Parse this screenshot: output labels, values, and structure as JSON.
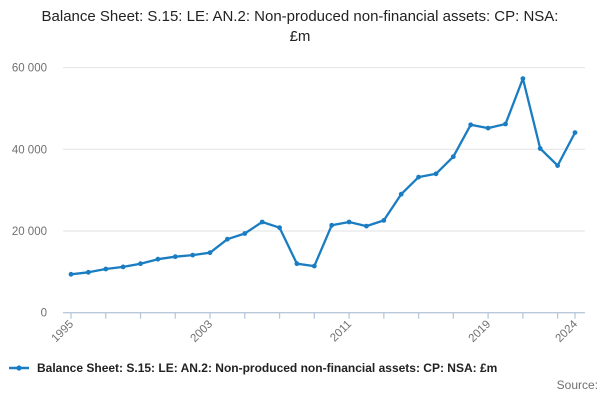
{
  "title": "Balance Sheet: S.15: LE: AN.2: Non-produced non-financial assets: CP: NSA: £m",
  "legend": {
    "label": "Balance Sheet: S.15: LE: AN.2: Non-produced non-financial assets: CP: NSA: £m",
    "marker": "line-with-dot-icon"
  },
  "source_label": "Source:",
  "colors": {
    "line": "#1a7dc2",
    "marker": "#1a7dc2",
    "grid": "#e2e2e2",
    "axis": "#b9c9da",
    "tick_text": "#707070",
    "title_text": "#222222"
  },
  "chart_data": {
    "type": "line",
    "title": "Balance Sheet: S.15: LE: AN.2: Non-produced non-financial assets: CP: NSA: £m",
    "xlabel": "",
    "ylabel": "",
    "x": [
      1995,
      1996,
      1997,
      1998,
      1999,
      2000,
      2001,
      2002,
      2003,
      2004,
      2005,
      2006,
      2007,
      2008,
      2009,
      2010,
      2011,
      2012,
      2013,
      2014,
      2015,
      2016,
      2017,
      2018,
      2019,
      2020,
      2021,
      2022,
      2023,
      2024
    ],
    "values": [
      9400,
      9900,
      10700,
      11200,
      12000,
      13100,
      13700,
      14100,
      14700,
      18000,
      19400,
      22200,
      20800,
      12000,
      11400,
      21400,
      22200,
      21200,
      22600,
      29000,
      33200,
      34000,
      38200,
      46000,
      45200,
      46200,
      57300,
      40200,
      36000,
      44100
    ],
    "ylim": [
      0,
      60000
    ],
    "xlim": [
      1995,
      2024
    ],
    "y_ticks": [
      {
        "value": 0,
        "label": "0"
      },
      {
        "value": 20000,
        "label": "20 000"
      },
      {
        "value": 40000,
        "label": "40 000"
      },
      {
        "value": 60000,
        "label": "60 000"
      }
    ],
    "x_minor_tick_years": [
      1995,
      1997,
      1999,
      2001,
      2003,
      2005,
      2007,
      2009,
      2011,
      2013,
      2015,
      2017,
      2019,
      2021,
      2023,
      2024
    ],
    "x_labeled_ticks": [
      1995,
      2003,
      2011,
      2019,
      2024
    ],
    "grid": "horizontal",
    "legend_position": "bottom",
    "marker": "dot"
  }
}
